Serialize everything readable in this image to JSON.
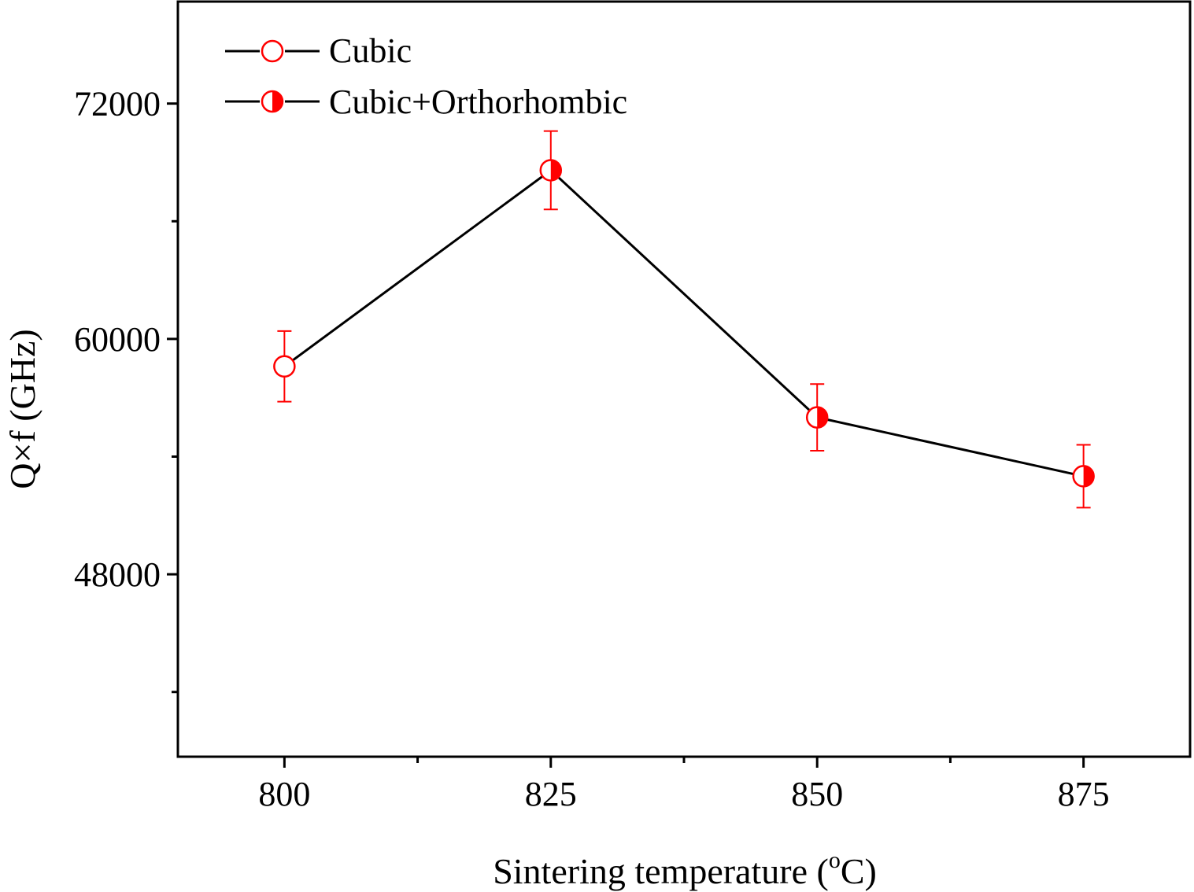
{
  "chart_data": {
    "type": "line",
    "xlabel": "Sintering temperature (",
    "xlabel_degree": "o",
    "xlabel_unit": "C)",
    "ylabel": "Q×f (GHz)",
    "xlim": [
      790,
      885
    ],
    "ylim": [
      38700,
      77200
    ],
    "x_ticks": [
      800,
      825,
      850,
      875
    ],
    "x_tick_labels": [
      "800",
      "825",
      "850",
      "875"
    ],
    "x_minor_ticks": [
      812.5,
      837.5,
      862.5
    ],
    "y_ticks": [
      48000,
      60000,
      72000
    ],
    "y_tick_labels": [
      "48000",
      "60000",
      "72000"
    ],
    "y_minor_ticks": [
      42000,
      54000,
      66000,
      78000
    ],
    "grid": false,
    "legend_position": "top-left",
    "colors": {
      "line": "#000000",
      "marker": "#ff0000"
    },
    "series": [
      {
        "x": [
          800,
          825,
          850,
          875
        ],
        "y": [
          58600,
          68600,
          56000,
          53000
        ],
        "error": [
          1800,
          2000,
          1700,
          1600
        ],
        "phase": [
          "cubic",
          "cubic+orthorhombic",
          "cubic+orthorhombic",
          "cubic+orthorhombic"
        ]
      }
    ],
    "legend": [
      {
        "label": "Cubic",
        "marker": "open-circle"
      },
      {
        "label": "Cubic+Orthorhombic",
        "marker": "half-filled-circle"
      }
    ]
  }
}
